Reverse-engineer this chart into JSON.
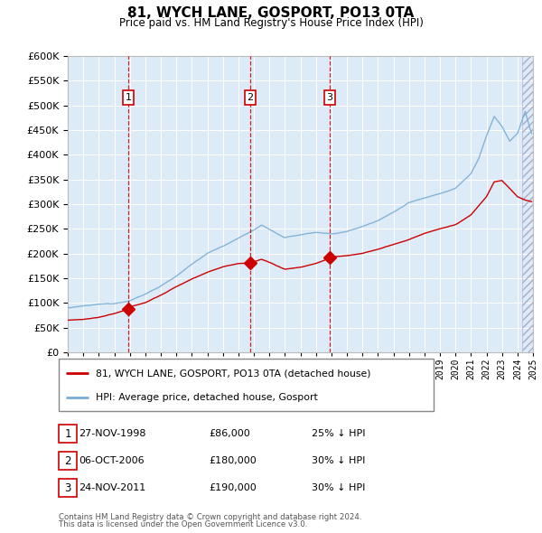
{
  "title": "81, WYCH LANE, GOSPORT, PO13 0TA",
  "subtitle": "Price paid vs. HM Land Registry's House Price Index (HPI)",
  "legend_label_red": "81, WYCH LANE, GOSPORT, PO13 0TA (detached house)",
  "legend_label_blue": "HPI: Average price, detached house, Gosport",
  "footer1": "Contains HM Land Registry data © Crown copyright and database right 2024.",
  "footer2": "This data is licensed under the Open Government Licence v3.0.",
  "transactions": [
    {
      "num": 1,
      "date": "27-NOV-1998",
      "price": "£86,000",
      "pct": "25% ↓ HPI",
      "year": 1998.9
    },
    {
      "num": 2,
      "date": "06-OCT-2006",
      "price": "£180,000",
      "pct": "30% ↓ HPI",
      "year": 2006.77
    },
    {
      "num": 3,
      "date": "24-NOV-2011",
      "price": "£190,000",
      "pct": "30% ↓ HPI",
      "year": 2011.9
    }
  ],
  "red_color": "#cc0000",
  "blue_color": "#7aaed6",
  "background_chart": "#ddeaf7",
  "grid_color": "#ffffff",
  "ylim": [
    0,
    600000
  ],
  "yticks": [
    0,
    50000,
    100000,
    150000,
    200000,
    250000,
    300000,
    350000,
    400000,
    450000,
    500000,
    550000,
    600000
  ],
  "xstart": 1995,
  "xend": 2025
}
